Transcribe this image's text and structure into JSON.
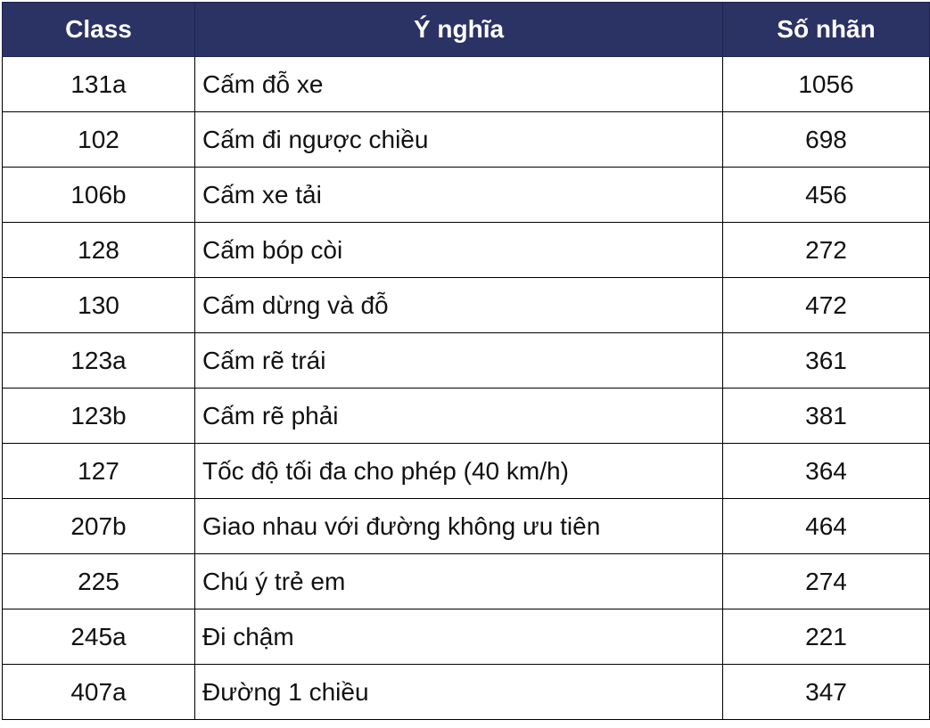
{
  "table": {
    "headers": [
      "Class",
      "Ý nghĩa",
      "Số nhãn"
    ],
    "rows": [
      {
        "class": "131a",
        "meaning": "Cấm đỗ xe",
        "count": "1056"
      },
      {
        "class": "102",
        "meaning": "Cấm đi ngược chiều",
        "count": "698"
      },
      {
        "class": "106b",
        "meaning": "Cấm xe tải",
        "count": "456"
      },
      {
        "class": "128",
        "meaning": "Cấm bóp còi",
        "count": "272"
      },
      {
        "class": "130",
        "meaning": "Cấm dừng và đỗ",
        "count": "472"
      },
      {
        "class": "123a",
        "meaning": "Cấm rẽ trái",
        "count": "361"
      },
      {
        "class": "123b",
        "meaning": "Cấm rẽ phải",
        "count": "381"
      },
      {
        "class": "127",
        "meaning": "Tốc độ tối đa cho phép (40 km/h)",
        "count": "364"
      },
      {
        "class": "207b",
        "meaning": "Giao nhau với đường không ưu tiên",
        "count": "464"
      },
      {
        "class": "225",
        "meaning": "Chú ý trẻ em",
        "count": "274"
      },
      {
        "class": "245a",
        "meaning": "Đi chậm",
        "count": "221"
      },
      {
        "class": "407a",
        "meaning": "Đường 1 chiều",
        "count": "347"
      }
    ]
  },
  "colors": {
    "header_background": "#2b3264",
    "header_text": "#ffffff",
    "border": "#000000"
  }
}
